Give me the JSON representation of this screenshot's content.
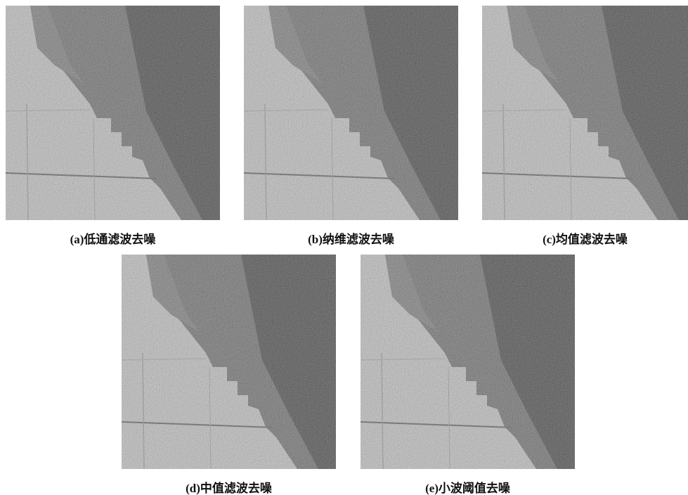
{
  "panels": [
    {
      "caption": "(a)低通滤波去噪"
    },
    {
      "caption": "(b)纳维滤波去噪"
    },
    {
      "caption": "(c)均值滤波去噪"
    },
    {
      "caption": "(d)中值滤波去噪"
    },
    {
      "caption": "(e)小波阈值去噪"
    }
  ]
}
